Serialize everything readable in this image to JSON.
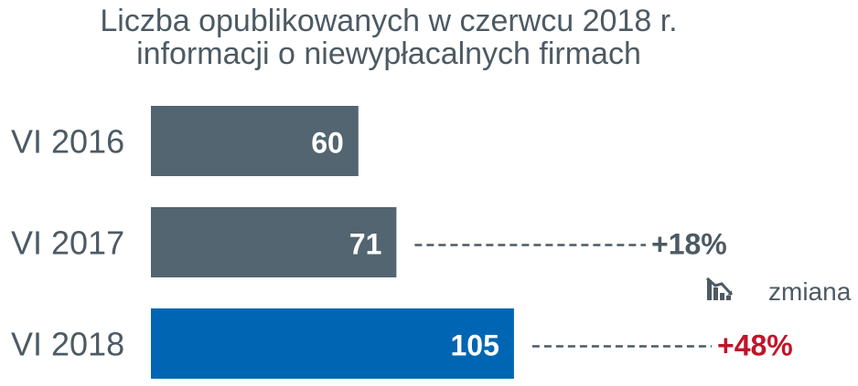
{
  "chart_data": {
    "type": "bar",
    "orientation": "horizontal",
    "title_lines": [
      "Liczba opublikowanych w czerwcu 2018 r.",
      "informacji o niewypłacalnych firmach"
    ],
    "categories": [
      "VI 2016",
      "VI 2017",
      "VI 2018"
    ],
    "values": [
      60,
      71,
      105
    ],
    "value_labels": [
      "60",
      "71",
      "105"
    ],
    "bar_colors": [
      "#536570",
      "#536570",
      "#0066b3"
    ],
    "changes": [
      {
        "category": "VI 2017",
        "label": "+18%",
        "color": "#4d5a63"
      },
      {
        "category": "VI 2018",
        "label": "+48%",
        "color": "#c0142a"
      }
    ],
    "legend": {
      "label": "zmiana",
      "icon": "declining-chart-icon"
    },
    "xlim": [
      0,
      105
    ],
    "grid": false
  },
  "colors": {
    "text": "#4d5a63",
    "bar_default": "#536570",
    "bar_highlight": "#0066b3",
    "change_highlight": "#c0142a"
  }
}
